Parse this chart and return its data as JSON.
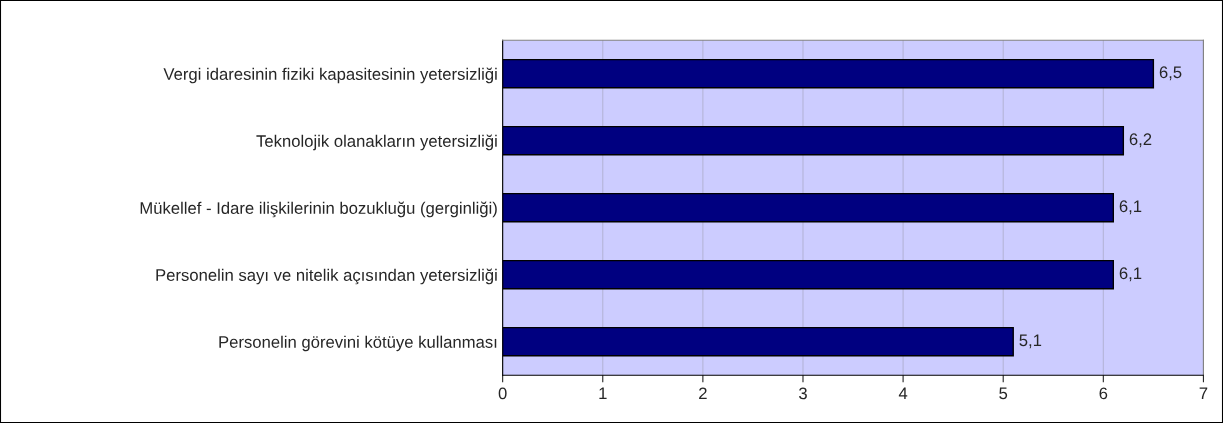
{
  "chart_data": {
    "type": "bar",
    "orientation": "horizontal",
    "categories": [
      "Vergi idaresinin fiziki kapasitesinin yetersizliği",
      "Teknolojik olanakların yetersizliği",
      "Mükellef - Idare ilişkilerinin bozukluğu (gerginliği)",
      "Personelin sayı ve nitelik açısından yetersizliği",
      "Personelin görevini kötüye kullanması"
    ],
    "values": [
      6.5,
      6.2,
      6.1,
      6.1,
      5.1
    ],
    "value_labels": [
      "6,5",
      "6,2",
      "6,1",
      "6,1",
      "5,1"
    ],
    "color": "#000080",
    "xlim": [
      0,
      7
    ],
    "xticks": [
      0,
      1,
      2,
      3,
      4,
      5,
      6,
      7
    ],
    "grid": "x",
    "legend": false
  }
}
